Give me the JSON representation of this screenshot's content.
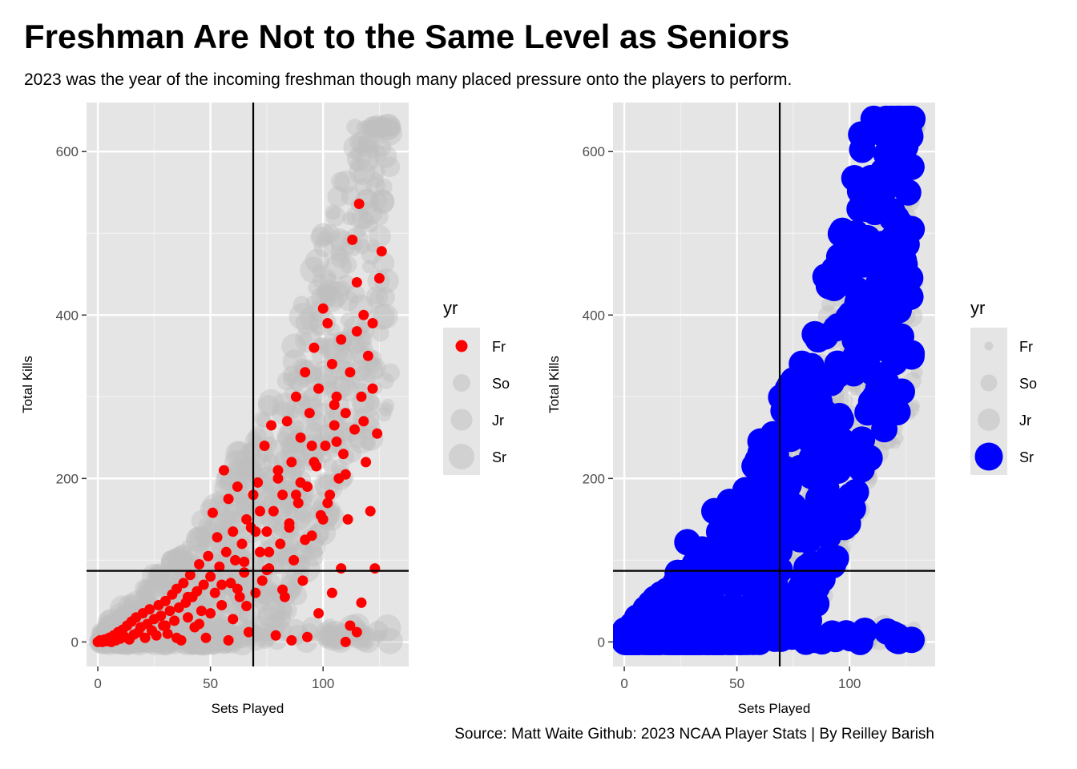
{
  "title": "Freshman Are Not to the Same Level as Seniors",
  "subtitle": "2023 was the year of the incoming freshman though many placed pressure onto the players to perform.",
  "caption": "Source: Matt Waite Github: 2023 NCAA Player Stats | By Reilley Barish",
  "colors": {
    "panel_bg": "#e5e5e5",
    "grid": "#ffffff",
    "muted": "#bebebe",
    "freshman": "#ff0000",
    "senior": "#0000ff",
    "refline": "#000000"
  },
  "chart_data": [
    {
      "type": "scatter",
      "highlight": "Fr",
      "highlight_color": "#ff0000",
      "xlabel": "Sets Played",
      "ylabel": "Total Kills",
      "xlim": [
        -5,
        138
      ],
      "ylim": [
        -30,
        660
      ],
      "xticks": [
        0,
        50,
        100
      ],
      "yticks": [
        0,
        200,
        400,
        600
      ],
      "xticklabels": [
        "0",
        "50",
        "100"
      ],
      "yticklabels": [
        "0",
        "200",
        "400",
        "600"
      ],
      "vline": 69,
      "hline": 87,
      "legend": {
        "title": "yr",
        "position": "right",
        "entries": [
          "Fr",
          "So",
          "Jr",
          "Sr"
        ]
      }
    },
    {
      "type": "scatter",
      "highlight": "Sr",
      "highlight_color": "#0000ff",
      "xlabel": "Sets Played",
      "ylabel": "Total Kills",
      "xlim": [
        -5,
        138
      ],
      "ylim": [
        -30,
        660
      ],
      "xticks": [
        0,
        50,
        100
      ],
      "yticks": [
        0,
        200,
        400,
        600
      ],
      "xticklabels": [
        "0",
        "50",
        "100"
      ],
      "yticklabels": [
        "0",
        "200",
        "400",
        "600"
      ],
      "vline": 69,
      "hline": 87,
      "legend": {
        "title": "yr",
        "position": "right",
        "entries": [
          "Fr",
          "So",
          "Jr",
          "Sr"
        ]
      }
    }
  ],
  "freshman_points": [
    [
      0,
      0
    ],
    [
      1,
      2
    ],
    [
      2,
      0
    ],
    [
      3,
      3
    ],
    [
      4,
      1
    ],
    [
      5,
      5
    ],
    [
      6,
      0
    ],
    [
      7,
      8
    ],
    [
      8,
      2
    ],
    [
      9,
      12
    ],
    [
      10,
      4
    ],
    [
      11,
      15
    ],
    [
      12,
      6
    ],
    [
      13,
      20
    ],
    [
      14,
      3
    ],
    [
      15,
      25
    ],
    [
      16,
      9
    ],
    [
      17,
      30
    ],
    [
      18,
      12
    ],
    [
      19,
      18
    ],
    [
      20,
      35
    ],
    [
      21,
      5
    ],
    [
      22,
      22
    ],
    [
      23,
      40
    ],
    [
      24,
      14
    ],
    [
      25,
      28
    ],
    [
      26,
      8
    ],
    [
      27,
      45
    ],
    [
      28,
      32
    ],
    [
      29,
      20
    ],
    [
      30,
      50
    ],
    [
      31,
      10
    ],
    [
      32,
      38
    ],
    [
      33,
      58
    ],
    [
      34,
      26
    ],
    [
      35,
      65
    ],
    [
      36,
      42
    ],
    [
      37,
      2
    ],
    [
      38,
      72
    ],
    [
      39,
      48
    ],
    [
      40,
      30
    ],
    [
      41,
      82
    ],
    [
      42,
      55
    ],
    [
      43,
      18
    ],
    [
      44,
      62
    ],
    [
      45,
      95
    ],
    [
      46,
      38
    ],
    [
      47,
      70
    ],
    [
      48,
      5
    ],
    [
      49,
      105
    ],
    [
      50,
      80
    ],
    [
      51,
      158
    ],
    [
      52,
      60
    ],
    [
      53,
      128
    ],
    [
      54,
      92
    ],
    [
      55,
      45
    ],
    [
      56,
      210
    ],
    [
      57,
      110
    ],
    [
      58,
      175
    ],
    [
      59,
      72
    ],
    [
      60,
      135
    ],
    [
      61,
      100
    ],
    [
      62,
      190
    ],
    [
      63,
      55
    ],
    [
      64,
      120
    ],
    [
      65,
      85
    ],
    [
      66,
      150
    ],
    [
      67,
      12
    ],
    [
      68,
      140
    ],
    [
      69,
      180
    ],
    [
      70,
      60
    ],
    [
      71,
      195
    ],
    [
      72,
      110
    ],
    [
      73,
      75
    ],
    [
      74,
      240
    ],
    [
      75,
      135
    ],
    [
      76,
      90
    ],
    [
      77,
      265
    ],
    [
      78,
      160
    ],
    [
      79,
      8
    ],
    [
      80,
      200
    ],
    [
      81,
      120
    ],
    [
      82,
      180
    ],
    [
      83,
      55
    ],
    [
      84,
      270
    ],
    [
      85,
      145
    ],
    [
      86,
      220
    ],
    [
      87,
      100
    ],
    [
      88,
      300
    ],
    [
      89,
      170
    ],
    [
      90,
      250
    ],
    [
      91,
      75
    ],
    [
      92,
      330
    ],
    [
      93,
      190
    ],
    [
      94,
      280
    ],
    [
      95,
      130
    ],
    [
      96,
      360
    ],
    [
      97,
      215
    ],
    [
      98,
      310
    ],
    [
      99,
      155
    ],
    [
      100,
      408
    ],
    [
      101,
      240
    ],
    [
      102,
      390
    ],
    [
      103,
      180
    ],
    [
      104,
      340
    ],
    [
      105,
      265
    ],
    [
      106,
      300
    ],
    [
      107,
      200
    ],
    [
      108,
      370
    ],
    [
      109,
      230
    ],
    [
      110,
      280
    ],
    [
      111,
      150
    ],
    [
      112,
      330
    ],
    [
      113,
      492
    ],
    [
      114,
      260
    ],
    [
      115,
      440
    ],
    [
      116,
      536
    ],
    [
      117,
      300
    ],
    [
      118,
      400
    ],
    [
      119,
      220
    ],
    [
      120,
      350
    ],
    [
      121,
      160
    ],
    [
      122,
      390
    ],
    [
      123,
      90
    ],
    [
      124,
      255
    ],
    [
      125,
      445
    ],
    [
      126,
      478
    ],
    [
      30,
      20
    ],
    [
      35,
      5
    ],
    [
      40,
      55
    ],
    [
      45,
      22
    ],
    [
      50,
      35
    ],
    [
      55,
      70
    ],
    [
      60,
      28
    ],
    [
      65,
      98
    ],
    [
      70,
      135
    ],
    [
      75,
      88
    ],
    [
      80,
      210
    ],
    [
      85,
      140
    ],
    [
      90,
      195
    ],
    [
      95,
      240
    ],
    [
      100,
      150
    ],
    [
      105,
      290
    ],
    [
      110,
      205
    ],
    [
      115,
      380
    ],
    [
      118,
      270
    ],
    [
      122,
      310
    ],
    [
      58,
      2
    ],
    [
      62,
      65
    ],
    [
      66,
      44
    ],
    [
      72,
      160
    ],
    [
      76,
      110
    ],
    [
      82,
      64
    ],
    [
      88,
      180
    ],
    [
      92,
      125
    ],
    [
      96,
      220
    ],
    [
      102,
      170
    ],
    [
      106,
      245
    ],
    [
      110,
      0
    ],
    [
      112,
      20
    ],
    [
      115,
      12
    ],
    [
      117,
      48
    ],
    [
      108,
      90
    ],
    [
      104,
      60
    ],
    [
      98,
      35
    ],
    [
      93,
      6
    ],
    [
      86,
      2
    ]
  ]
}
